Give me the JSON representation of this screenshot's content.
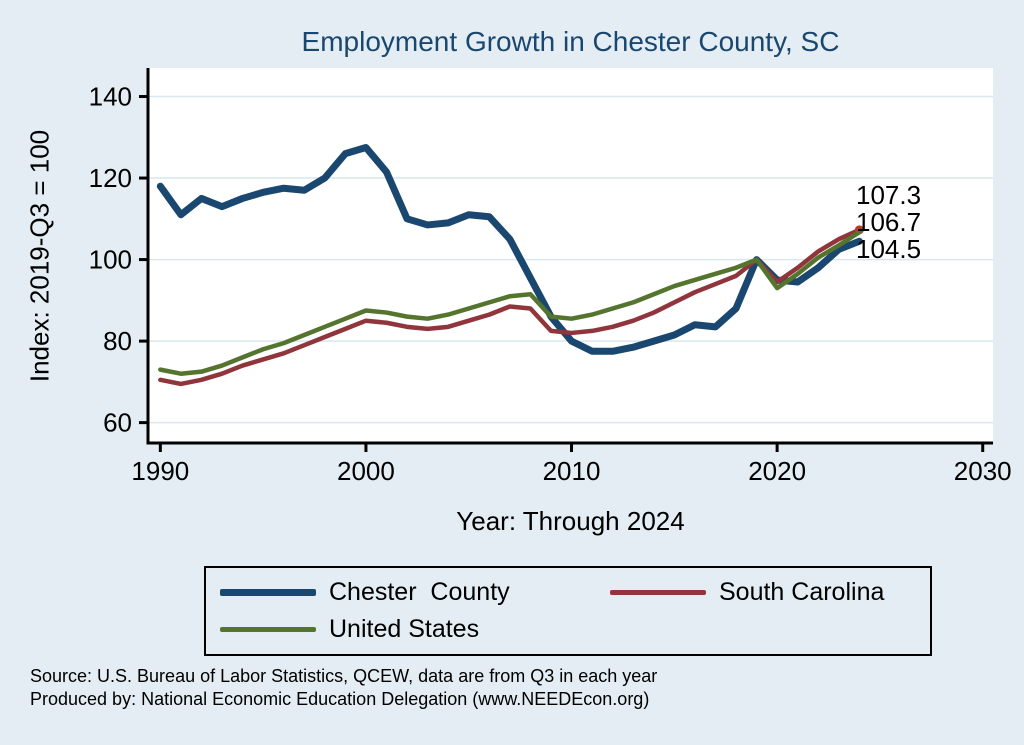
{
  "chart_data": {
    "type": "line",
    "title": "Employment Growth in Chester County, SC",
    "xlabel": "Year: Through 2024",
    "ylabel": "Index: 2019-Q3 = 100",
    "x": [
      1990,
      1991,
      1992,
      1993,
      1994,
      1995,
      1996,
      1997,
      1998,
      1999,
      2000,
      2001,
      2002,
      2003,
      2004,
      2005,
      2006,
      2007,
      2008,
      2009,
      2010,
      2011,
      2012,
      2013,
      2014,
      2015,
      2016,
      2017,
      2018,
      2019,
      2020,
      2021,
      2022,
      2023,
      2024
    ],
    "xlim": [
      1989.4,
      2030.5
    ],
    "ylim": [
      55,
      147
    ],
    "xticks": [
      1990,
      2000,
      2010,
      2020,
      2030
    ],
    "yticks": [
      60,
      80,
      100,
      120,
      140
    ],
    "grid": "horizontal",
    "legend_position": "bottom-center",
    "series": [
      {
        "name": "Chester  County",
        "color": "#1A476F",
        "width": 7,
        "values": [
          118,
          111,
          115,
          113,
          115,
          116.5,
          117.5,
          117,
          120,
          126,
          127.5,
          121.5,
          110,
          108.5,
          109,
          111,
          110.5,
          105,
          95.5,
          86,
          80,
          77.5,
          77.5,
          78.5,
          80,
          81.5,
          84,
          83.5,
          88,
          100,
          95,
          94.5,
          98,
          102.5,
          104.5
        ]
      },
      {
        "name": "South Carolina",
        "color": "#90353B",
        "width": 4.5,
        "end_marker": true,
        "values": [
          70.5,
          69.5,
          70.5,
          72,
          74,
          75.5,
          77,
          79,
          81,
          83,
          85,
          84.5,
          83.5,
          83,
          83.5,
          85,
          86.5,
          88.5,
          88,
          82.5,
          82,
          82.5,
          83.5,
          85,
          87,
          89.5,
          92,
          94,
          96,
          100,
          94.5,
          98,
          102,
          105,
          107.3
        ]
      },
      {
        "name": "United States",
        "color": "#55752F",
        "width": 4.5,
        "values": [
          73,
          72,
          72.5,
          74,
          76,
          78,
          79.5,
          81.5,
          83.5,
          85.5,
          87.5,
          87,
          86,
          85.5,
          86.5,
          88,
          89.5,
          91,
          91.5,
          86,
          85.5,
          86.5,
          88,
          89.5,
          91.5,
          93.5,
          95,
          96.5,
          98,
          100,
          93,
          96.5,
          100.5,
          103.5,
          106.7
        ]
      }
    ],
    "end_labels": [
      "107.3",
      "106.7",
      "104.5"
    ]
  },
  "footer": {
    "source": "Source: U.S. Bureau of Labor Statistics, QCEW, data are from Q3 in each year",
    "produced_by": "Produced by: National Economic Education Delegation (www.NEEDEcon.org)"
  },
  "colors": {
    "background": "#E3EDF3",
    "plot_background": "#FFFFFF",
    "gridline": "#D9E6EF",
    "axis": "#000000",
    "title_text": "#1A476F",
    "marker": "#C0392B"
  }
}
